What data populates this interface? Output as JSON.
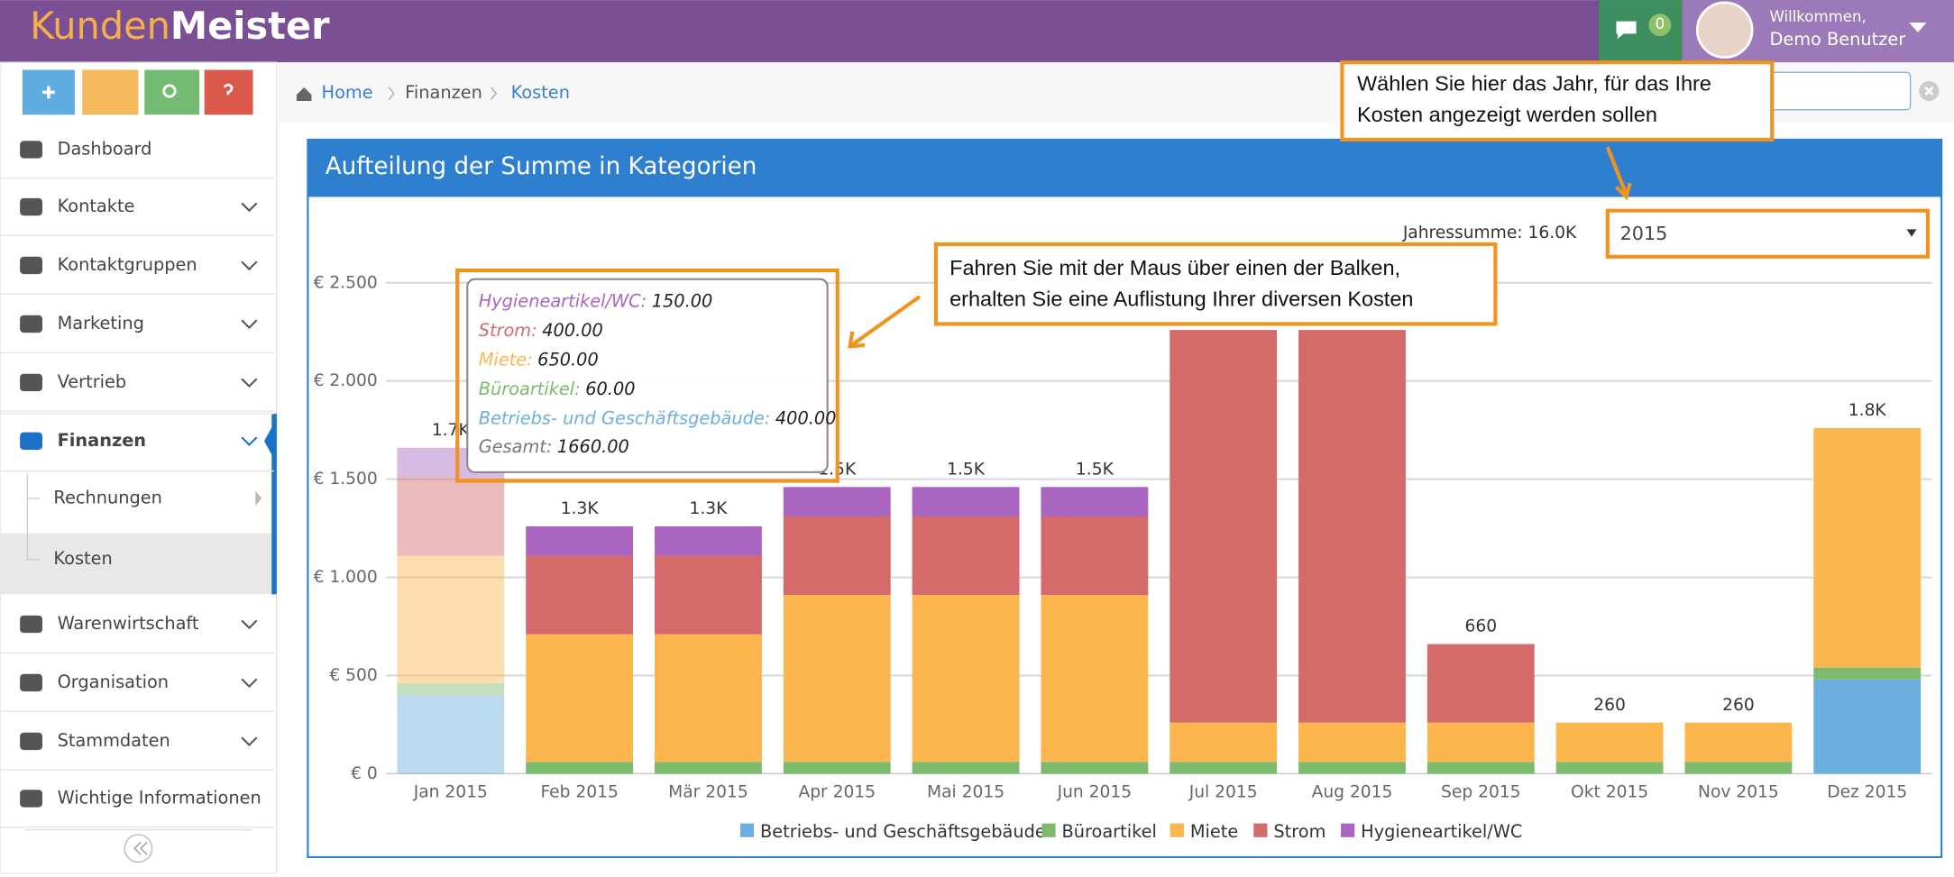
{
  "header": {
    "logo_part1": "Kunden",
    "logo_part2": "Meister",
    "messages_count": 0,
    "welcome": "Willkommen,",
    "user": "Demo Benutzer"
  },
  "sidebar": {
    "items": [
      "Dashboard",
      "Kontakte",
      "Kontaktgruppen",
      "Marketing",
      "Vertrieb",
      "Finanzen",
      "Warenwirtschaft",
      "Organisation",
      "Stammdaten",
      "Wichtige Informationen"
    ],
    "subitems": [
      "Rechnungen",
      "Kosten"
    ]
  },
  "breadcrumb": [
    "Home",
    "Finanzen",
    "Kosten"
  ],
  "panel": {
    "title": "Aufteilung der Summe in Kategorien",
    "year_total_label": "Jahressumme: 16.0K",
    "year": "2015"
  },
  "chart_data": {
    "type": "stacked-bar",
    "categories": [
      "Jan 2015",
      "Feb 2015",
      "Mär 2015",
      "Apr 2015",
      "Mai 2015",
      "Jun 2015",
      "Jul 2015",
      "Aug 2015",
      "Sep 2015",
      "Okt 2015",
      "Nov 2015",
      "Dez 2015"
    ],
    "series": [
      {
        "name": "Betriebs- und Geschäftsgebäude",
        "color": "#6aafe0",
        "values": [
          400,
          0,
          0,
          0,
          0,
          0,
          0,
          0,
          0,
          0,
          0,
          480
        ]
      },
      {
        "name": "Büroartikel",
        "color": "#7cba6e",
        "values": [
          60,
          60,
          60,
          60,
          60,
          60,
          60,
          60,
          60,
          60,
          60,
          60
        ]
      },
      {
        "name": "Miete",
        "color": "#fdb54e",
        "values": [
          650,
          650,
          650,
          850,
          850,
          850,
          200,
          200,
          200,
          200,
          200,
          1220
        ]
      },
      {
        "name": "Strom",
        "color": "#d46a6a",
        "values": [
          400,
          400,
          400,
          400,
          400,
          400,
          2000,
          2000,
          400,
          0,
          0,
          0
        ]
      },
      {
        "name": "Hygieneartikel/WC",
        "color": "#a965bf",
        "values": [
          150,
          150,
          150,
          150,
          150,
          150,
          0,
          0,
          0,
          0,
          0,
          0
        ]
      }
    ],
    "stack_labels": [
      "1.7K",
      "1.3K",
      "1.3K",
      "1.5K",
      "1.5K",
      "1.5K",
      null,
      null,
      "660",
      "260",
      "260",
      "1.8K"
    ],
    "ylim": [
      0,
      2500
    ],
    "yticks": [
      {
        "value": 0,
        "label": "€ 0"
      },
      {
        "value": 500,
        "label": "€ 500"
      },
      {
        "value": 1000,
        "label": "€ 1.000"
      },
      {
        "value": 1500,
        "label": "€ 1.500"
      },
      {
        "value": 2000,
        "label": "€ 2.000"
      },
      {
        "value": 2500,
        "label": "€ 2.500"
      }
    ],
    "grid": true
  },
  "tooltip": {
    "items": [
      {
        "name": "Hygieneartikel/WC:",
        "value": "150.00"
      },
      {
        "name": "Strom:",
        "value": "400.00"
      },
      {
        "name": "Miete:",
        "value": "650.00"
      },
      {
        "name": "Büroartikel:",
        "value": "60.00"
      },
      {
        "name": "Betriebs- und Geschäftsgebäude:",
        "value": "400.00"
      }
    ],
    "total": {
      "name": "Gesamt:",
      "value": "1660.00"
    }
  },
  "callouts": [
    [
      "Wählen Sie hier das Jahr, für das Ihre",
      "Kosten angezeigt werden sollen"
    ],
    [
      "Fahren Sie mit der Maus über einen der Balken,",
      "erhalten Sie eine Auflistung Ihrer diversen Kosten"
    ]
  ]
}
